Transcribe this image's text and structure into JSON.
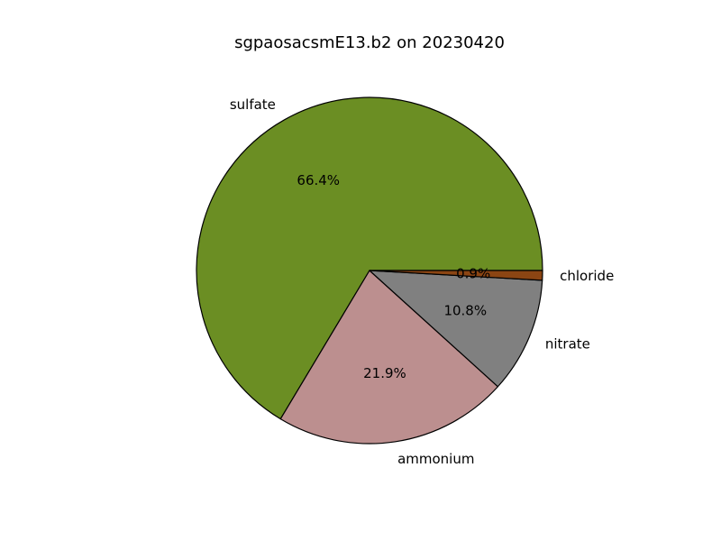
{
  "chart_data": {
    "type": "pie",
    "title": "sgpaosacsmE13.b2 on 20230420",
    "start_angle_deg": 0,
    "direction": "counterclockwise",
    "edge_color": "#000000",
    "slices": [
      {
        "label": "sulfate",
        "value": 66.4,
        "pct_label": "66.4%",
        "color": "#6b8e23"
      },
      {
        "label": "ammonium",
        "value": 21.9,
        "pct_label": "21.9%",
        "color": "#bc8f8f"
      },
      {
        "label": "nitrate",
        "value": 10.8,
        "pct_label": "10.8%",
        "color": "#808080"
      },
      {
        "label": "chloride",
        "value": 0.9,
        "pct_label": "0.9%",
        "color": "#8b4513"
      }
    ]
  }
}
